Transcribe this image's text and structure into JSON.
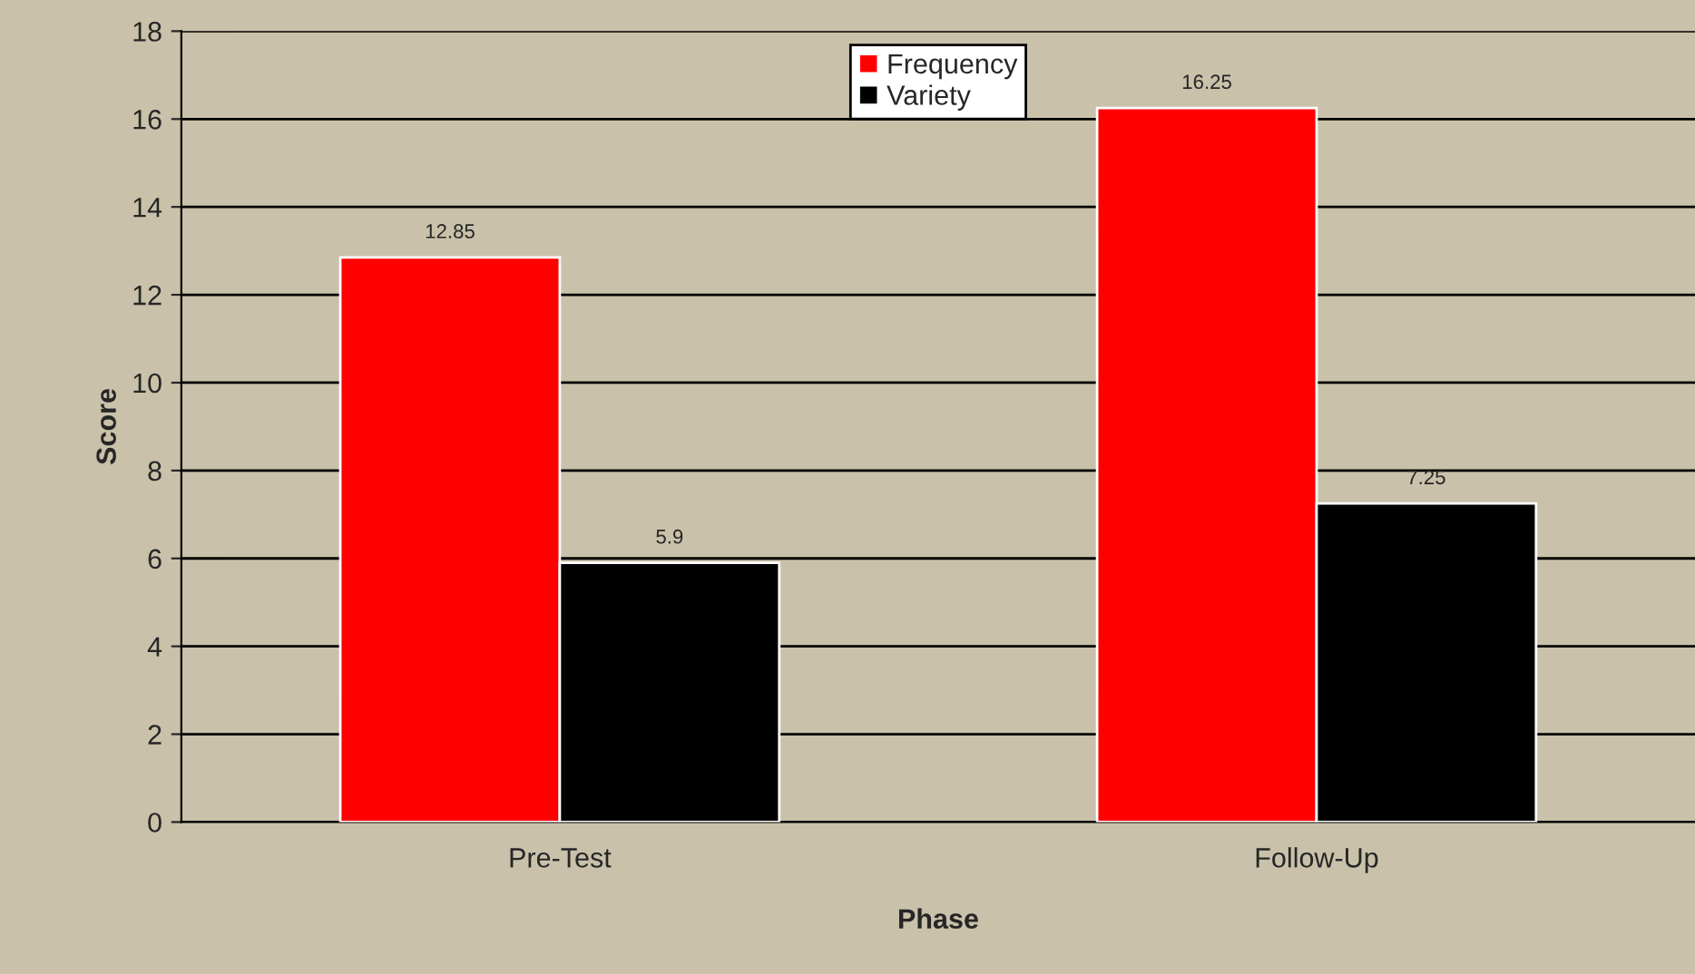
{
  "chart_data": {
    "type": "bar",
    "xlabel": "Phase",
    "ylabel": "Score",
    "categories": [
      "Pre-Test",
      "Follow-Up"
    ],
    "series": [
      {
        "name": "Frequency",
        "color": "#ff0000",
        "values": [
          12.85,
          16.25
        ]
      },
      {
        "name": "Variety",
        "color": "#000000",
        "values": [
          5.9,
          7.25
        ]
      }
    ],
    "ylim": [
      0,
      18
    ],
    "yticks": [
      0,
      2,
      4,
      6,
      8,
      10,
      12,
      14,
      16,
      18
    ],
    "grid": "y",
    "legend": "top",
    "data_labels": true
  }
}
